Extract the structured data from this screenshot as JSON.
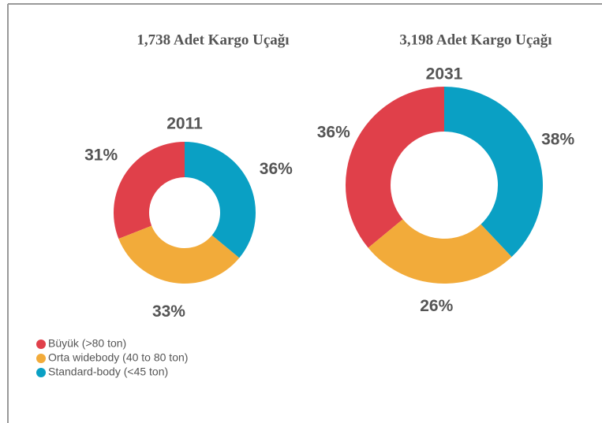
{
  "chart_data": [
    {
      "type": "pie",
      "title": "1,738 Adet Kargo Uçağı",
      "label": "2011",
      "categories": [
        "Büyük (>80 ton)",
        "Orta widebody (40 to 80 ton)",
        "Standard-body (<45 ton)"
      ],
      "values": [
        31,
        33,
        36
      ],
      "value_labels": [
        "31%",
        "33%",
        "36%"
      ],
      "colors": [
        "#e0404a",
        "#f2ab3a",
        "#0aa0c4"
      ]
    },
    {
      "type": "pie",
      "title": "3,198 Adet Kargo Uçağı",
      "label": "2031",
      "categories": [
        "Büyük (>80 ton)",
        "Orta widebody (40 to 80 ton)",
        "Standard-body (<45 ton)"
      ],
      "values": [
        36,
        26,
        38
      ],
      "value_labels": [
        "36%",
        "26%",
        "38%"
      ],
      "colors": [
        "#e0404a",
        "#f2ab3a",
        "#0aa0c4"
      ]
    }
  ]
}
